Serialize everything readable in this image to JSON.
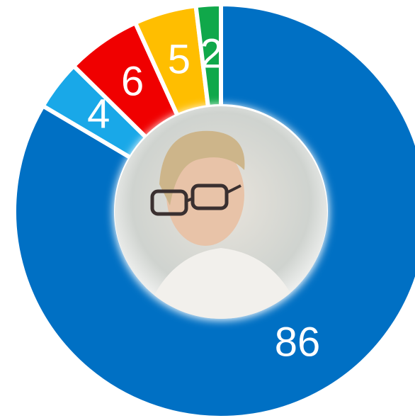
{
  "chart_data": {
    "type": "donut",
    "categories": [
      null,
      null,
      null,
      null,
      null
    ],
    "values": [
      86,
      4,
      6,
      5,
      2
    ],
    "colors": [
      "#0070c4",
      "#19a8e8",
      "#f00000",
      "#ffbe00",
      "#10a84a"
    ]
  }
}
